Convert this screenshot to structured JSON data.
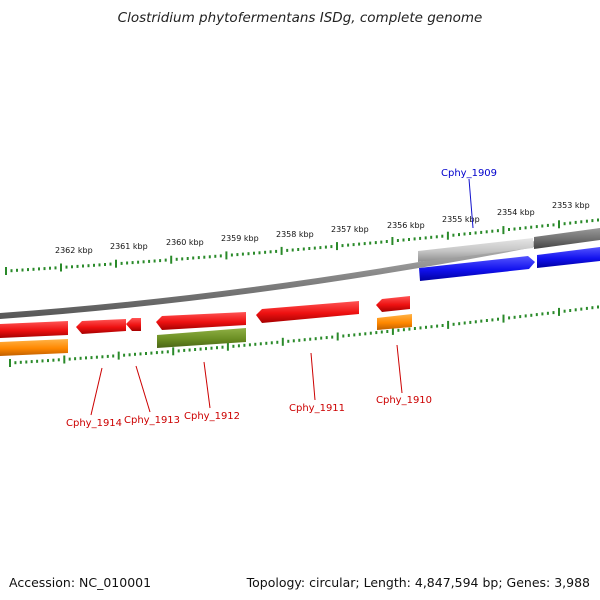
{
  "title": "Clostridium phytofermentans ISDg, complete genome",
  "footer": {
    "accession": "Accession: NC_010001",
    "info": "Topology: circular; Length: 4,847,594 bp; Genes: 3,988"
  },
  "scale_labels": [
    "2362 kbp",
    "2361 kbp",
    "2360 kbp",
    "2359 kbp",
    "2358 kbp",
    "2357 kbp",
    "2356 kbp",
    "2355 kbp",
    "2354 kbp",
    "2353 kbp"
  ],
  "gene_labels": [
    "Cphy_1909",
    "Cphy_1910",
    "Cphy_1911",
    "Cphy_1912",
    "Cphy_1913",
    "Cphy_1914"
  ],
  "colors": {
    "cds": "#ee1111",
    "gene": "#ff8800",
    "highlight_cds": "#1111ee",
    "highlight_gene": "#999999",
    "olive": "#6b8e23",
    "scale": "#2a8a2a",
    "backbone": "#7a7a7a",
    "label_red": "#cc0000",
    "label_blue": "#0000cc"
  }
}
